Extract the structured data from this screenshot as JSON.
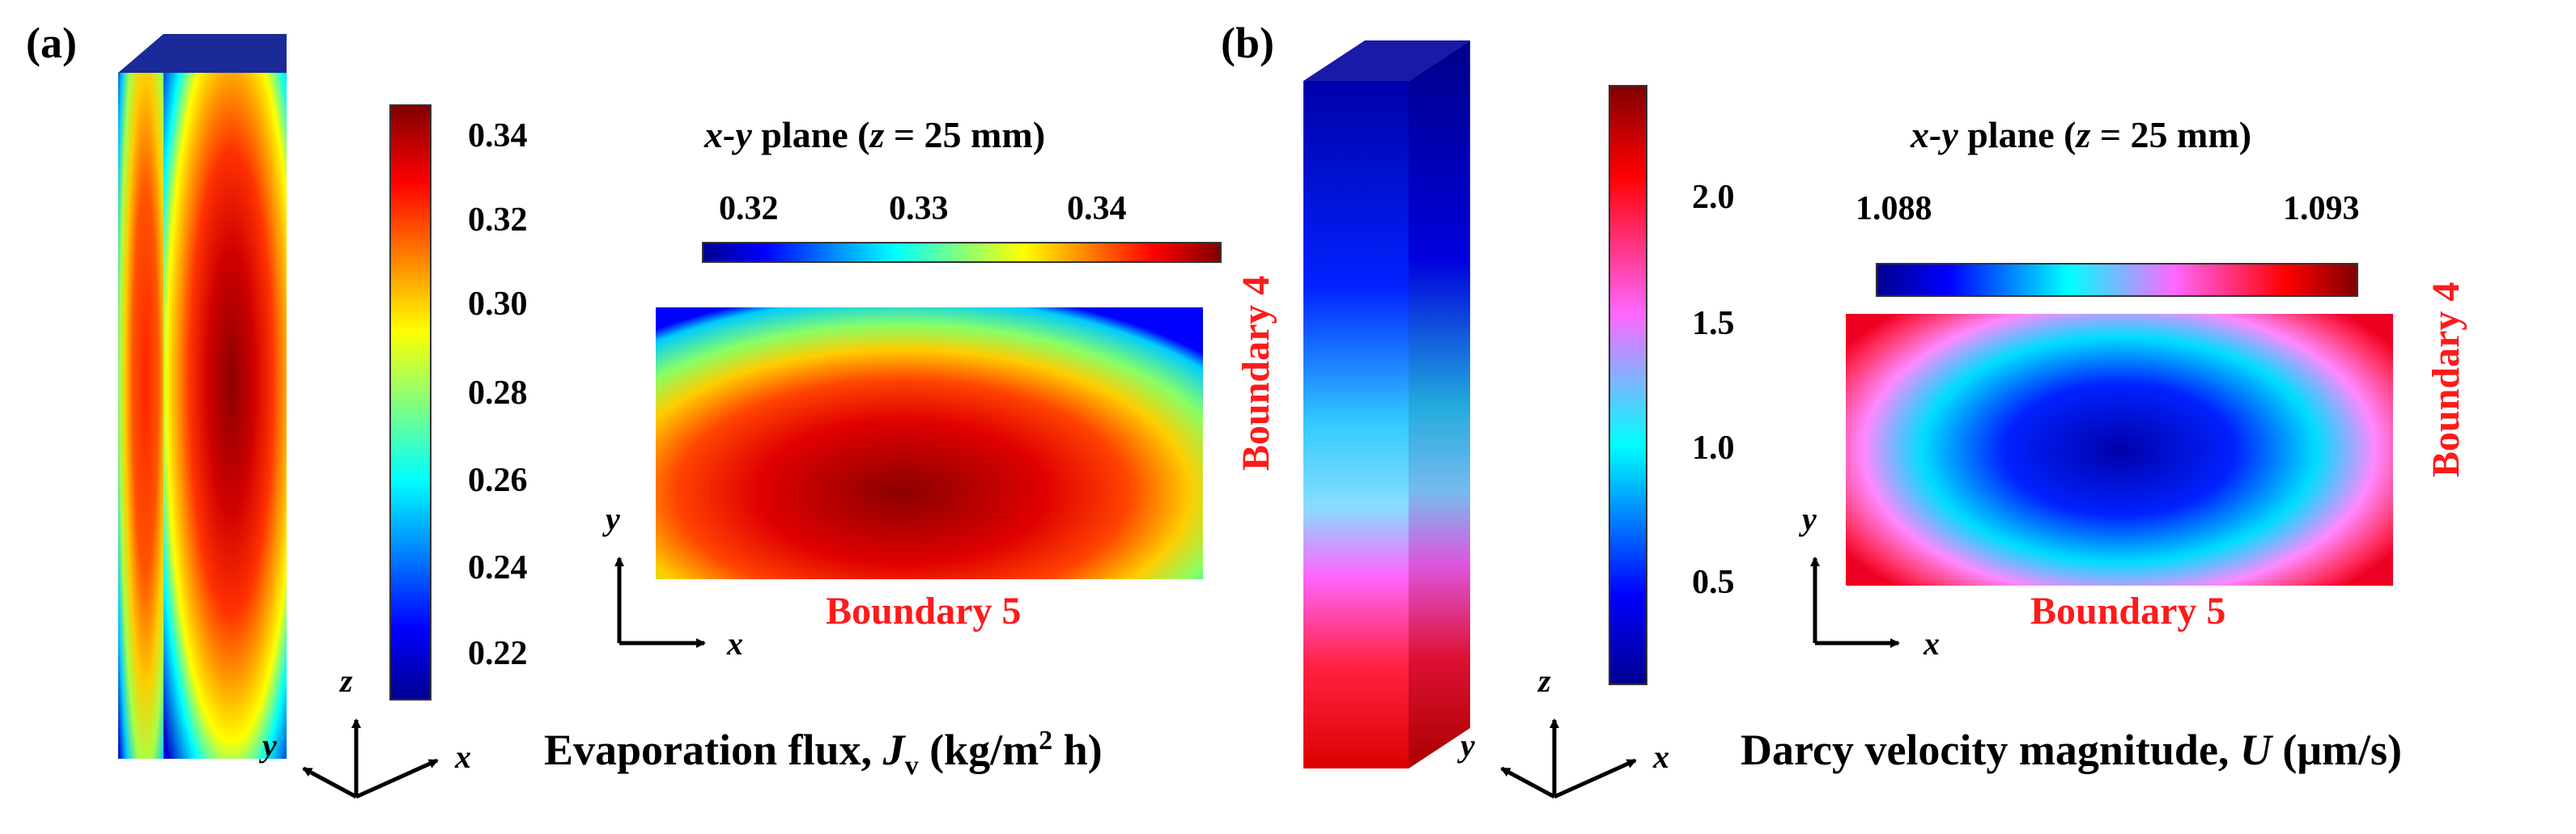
{
  "panels": [
    {
      "label": "(a)",
      "colorbar_ticks": [
        "0.34",
        "0.32",
        "0.30",
        "0.28",
        "0.26",
        "0.24",
        "0.22"
      ],
      "plane_title": {
        "pre": "x-y",
        "mid": " plane (",
        "z": "z",
        "post": " = 25 mm)"
      },
      "plane_ticks": [
        "0.32",
        "0.33",
        "0.34"
      ],
      "boundary_bottom": "Boundary 5",
      "boundary_right": "Boundary 4",
      "axes_3d": {
        "x": "x",
        "y": "y",
        "z": "z"
      },
      "axes_2d": {
        "x": "x",
        "y": "y"
      },
      "caption": {
        "text": "Evaporation flux, ",
        "sym": "J",
        "sub": "v",
        "units_pre": " (kg/m",
        "sup": "2",
        "units_post": " h)"
      }
    },
    {
      "label": "(b)",
      "colorbar_ticks": [
        "2.0",
        "1.5",
        "1.0",
        "0.5"
      ],
      "plane_title": {
        "pre": "x-y",
        "mid": " plane (",
        "z": "z",
        "post": " = 25 mm)"
      },
      "plane_ticks": [
        "1.088",
        "1.093"
      ],
      "boundary_bottom": "Boundary 5",
      "boundary_right": "Boundary 4",
      "axes_3d": {
        "x": "x",
        "y": "y",
        "z": "z"
      },
      "axes_2d": {
        "x": "x",
        "y": "y"
      },
      "caption": {
        "text": "Darcy velocity magnitude, ",
        "sym": "U",
        "units": " (μm/s)"
      }
    }
  ],
  "colors": {
    "jet": [
      "#00008f",
      "#0000ff",
      "#00ffff",
      "#ffff00",
      "#ff0000",
      "#800000"
    ],
    "wave": [
      "#00008f",
      "#0000ff",
      "#00ffff",
      "#ff66ff",
      "#ff0000",
      "#800000"
    ],
    "boundary_text": "#ff1a1a"
  }
}
